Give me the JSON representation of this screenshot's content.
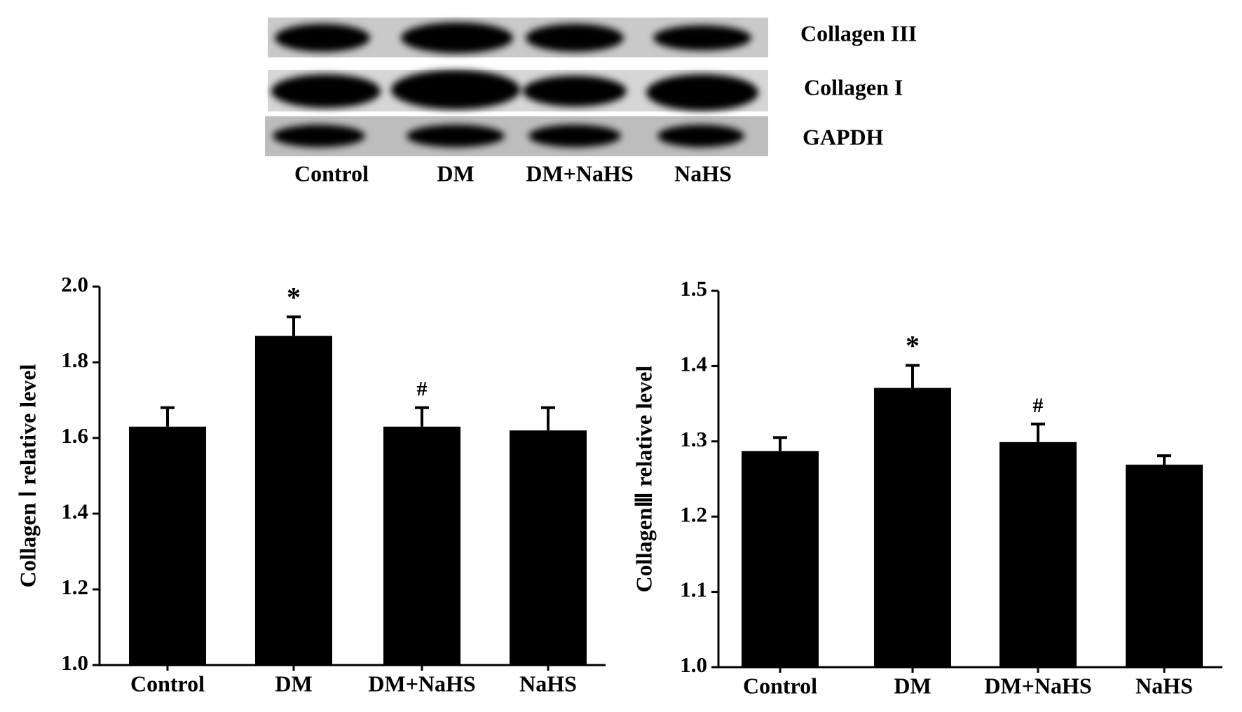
{
  "blot": {
    "rows": [
      "Collagen III",
      "Collagen I",
      "GAPDH"
    ],
    "lanes": [
      "Control",
      "DM",
      "DM+NaHS",
      "NaHS"
    ]
  },
  "chart_data": [
    {
      "type": "bar",
      "ylabel": "Collagen Ⅰ relative level",
      "categories": [
        "Control",
        "DM",
        "DM+NaHS",
        "NaHS"
      ],
      "values": [
        1.63,
        1.87,
        1.63,
        1.62
      ],
      "errors": [
        0.05,
        0.05,
        0.05,
        0.06
      ],
      "color": "#000000",
      "annotations": [
        {
          "text": "*",
          "x": "DM"
        },
        {
          "text": "#",
          "x": "DM+NaHS"
        }
      ],
      "ylim": [
        1.0,
        2.0
      ],
      "yticks": [
        {
          "value": 1.0,
          "label": "1.0"
        },
        1.2,
        1.4,
        1.6,
        1.8,
        {
          "value": 2.0,
          "label": "2.0"
        }
      ]
    },
    {
      "type": "bar",
      "ylabel": "CollagenⅢ relative level",
      "categories": [
        "Control",
        "DM",
        "DM+NaHS",
        "NaHS"
      ],
      "values": [
        1.287,
        1.371,
        1.299,
        1.269
      ],
      "errors": [
        0.018,
        0.03,
        0.024,
        0.012
      ],
      "color": "#000000",
      "annotations": [
        {
          "text": "*",
          "x": "DM"
        },
        {
          "text": "#",
          "x": "DM+NaHS"
        }
      ],
      "ylim": [
        1.0,
        1.5
      ],
      "yticks": [
        {
          "value": 1.0,
          "label": "1.0"
        },
        1.1,
        1.2,
        1.3,
        1.4,
        {
          "value": 1.5,
          "label": "1.5"
        }
      ]
    }
  ]
}
